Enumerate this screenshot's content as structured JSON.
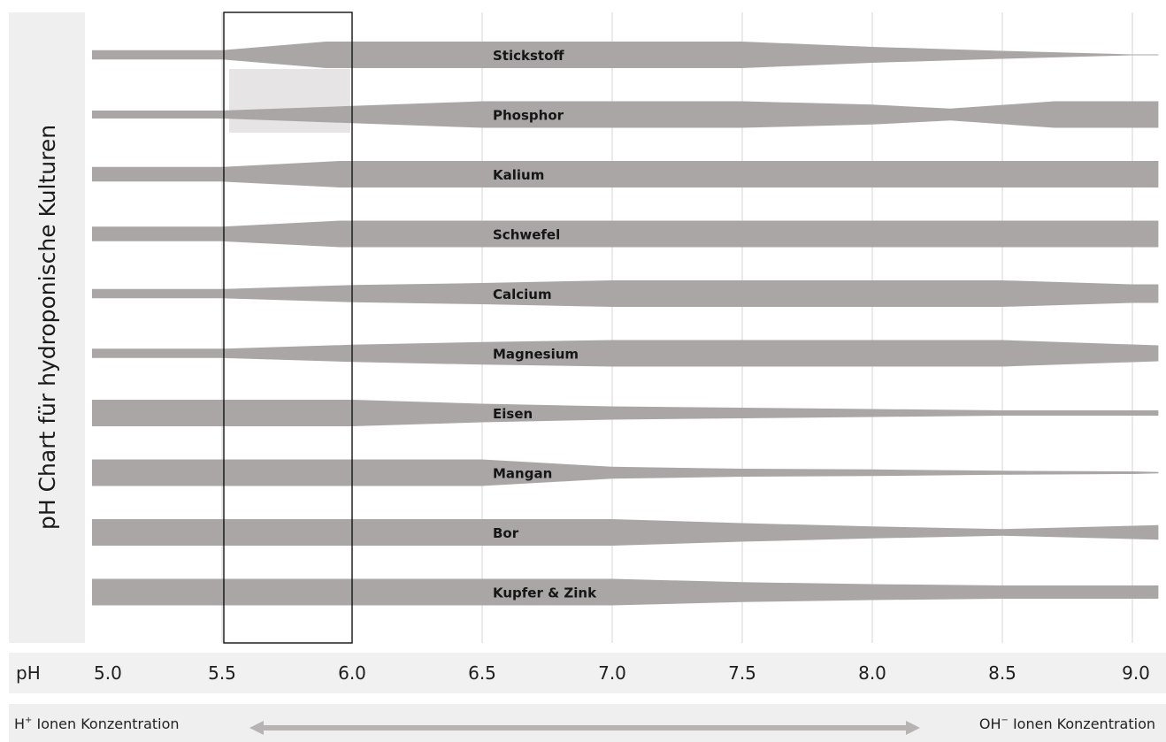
{
  "chart_data": {
    "type": "area",
    "title": "",
    "ylabel": "pH Chart für hydroponische Kulturen",
    "xlabel": "pH",
    "xlim": [
      5.0,
      9.1
    ],
    "x_ticks": [
      "5.0",
      "5.5",
      "6.0",
      "6.5",
      "7.0",
      "7.5",
      "8.0",
      "8.5",
      "9.0"
    ],
    "optimal_range": [
      5.5,
      6.0
    ],
    "band_color": "#aaa6a6",
    "bottom_labels": {
      "left_prefix": "H",
      "left_sup": "+",
      "left_text": " Ionen Konzentration",
      "right_prefix": "OH",
      "right_sup": "−",
      "right_text": " Ionen Konzentration"
    },
    "series": [
      {
        "name": "Stickstoff",
        "x": [
          5.0,
          5.5,
          5.9,
          6.0,
          6.5,
          7.0,
          7.5,
          8.0,
          8.5,
          9.0,
          9.1
        ],
        "values": [
          0.35,
          0.35,
          1.0,
          1.0,
          1.0,
          1.0,
          1.0,
          0.6,
          0.3,
          0.03,
          0.03
        ]
      },
      {
        "name": "Phosphor",
        "x": [
          5.0,
          5.5,
          6.0,
          6.5,
          7.0,
          7.5,
          8.0,
          8.3,
          8.7,
          9.0,
          9.1
        ],
        "values": [
          0.3,
          0.3,
          0.65,
          1.0,
          1.0,
          1.0,
          0.75,
          0.45,
          1.0,
          1.0,
          1.0
        ]
      },
      {
        "name": "Kalium",
        "x": [
          5.0,
          5.5,
          5.95,
          6.5,
          7.0,
          8.0,
          9.1
        ],
        "values": [
          0.55,
          0.55,
          1.0,
          1.0,
          1.0,
          1.0,
          1.0
        ]
      },
      {
        "name": "Schwefel",
        "x": [
          5.0,
          5.5,
          5.95,
          6.5,
          7.0,
          8.0,
          9.1
        ],
        "values": [
          0.55,
          0.55,
          1.0,
          1.0,
          1.0,
          1.0,
          1.0
        ]
      },
      {
        "name": "Calcium",
        "x": [
          5.0,
          5.5,
          6.0,
          6.5,
          7.0,
          8.0,
          8.5,
          9.0,
          9.1
        ],
        "values": [
          0.35,
          0.35,
          0.65,
          0.8,
          1.0,
          1.0,
          1.0,
          0.7,
          0.7
        ]
      },
      {
        "name": "Magnesium",
        "x": [
          5.0,
          5.5,
          6.0,
          6.5,
          7.0,
          8.0,
          8.5,
          9.1
        ],
        "values": [
          0.35,
          0.35,
          0.65,
          0.85,
          1.0,
          1.0,
          1.0,
          0.6
        ]
      },
      {
        "name": "Eisen",
        "x": [
          5.0,
          5.5,
          6.0,
          6.5,
          7.0,
          7.5,
          8.0,
          8.5,
          9.1
        ],
        "values": [
          1.0,
          1.0,
          1.0,
          0.7,
          0.5,
          0.4,
          0.3,
          0.2,
          0.2
        ]
      },
      {
        "name": "Mangan",
        "x": [
          5.0,
          5.5,
          6.0,
          6.5,
          7.0,
          7.5,
          8.0,
          8.5,
          9.0,
          9.1
        ],
        "values": [
          1.0,
          1.0,
          1.0,
          1.0,
          0.45,
          0.3,
          0.25,
          0.15,
          0.1,
          0.05
        ]
      },
      {
        "name": "Bor",
        "x": [
          5.0,
          5.5,
          6.0,
          6.5,
          7.0,
          7.5,
          8.0,
          8.5,
          9.0,
          9.1
        ],
        "values": [
          1.0,
          1.0,
          1.0,
          1.0,
          1.0,
          0.7,
          0.45,
          0.25,
          0.5,
          0.55
        ]
      },
      {
        "name": "Kupfer & Zink",
        "x": [
          5.0,
          5.5,
          6.0,
          6.5,
          7.0,
          7.5,
          8.0,
          8.5,
          9.0,
          9.1
        ],
        "values": [
          1.0,
          1.0,
          1.0,
          1.0,
          1.0,
          0.75,
          0.6,
          0.5,
          0.5,
          0.5
        ]
      }
    ]
  }
}
